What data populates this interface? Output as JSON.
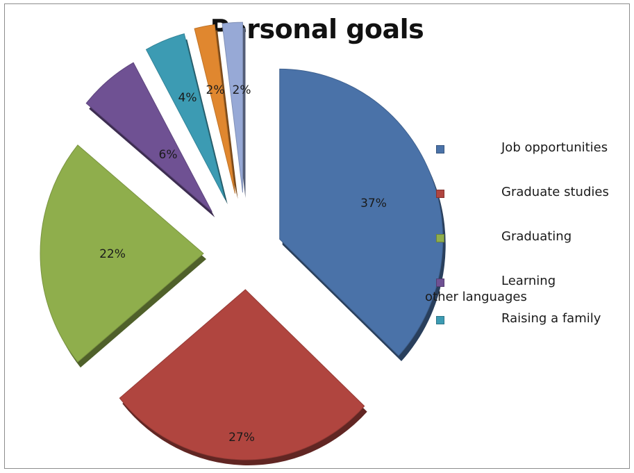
{
  "chart_data": {
    "type": "pie",
    "title": "Personal goals",
    "exploded": true,
    "legend_position": "right",
    "slices": [
      {
        "label": "Job opportunities",
        "value": 37,
        "display": "37%",
        "color": "#4a72a8"
      },
      {
        "label": "Graduate studies",
        "value": 27,
        "display": "27%",
        "color": "#b0453f"
      },
      {
        "label": "Graduating",
        "value": 22,
        "display": "22%",
        "color": "#8fae4c"
      },
      {
        "label": "Learning other languages",
        "value": 6,
        "display": "6%",
        "color": "#6f5193"
      },
      {
        "label": "Raising a family",
        "value": 4,
        "display": "4%",
        "color": "#3c9bb3"
      },
      {
        "label": "",
        "value": 2,
        "display": "2%",
        "color": "#e0872f"
      },
      {
        "label": "",
        "value": 2,
        "display": "2%",
        "color": "#97a9d6"
      }
    ]
  }
}
